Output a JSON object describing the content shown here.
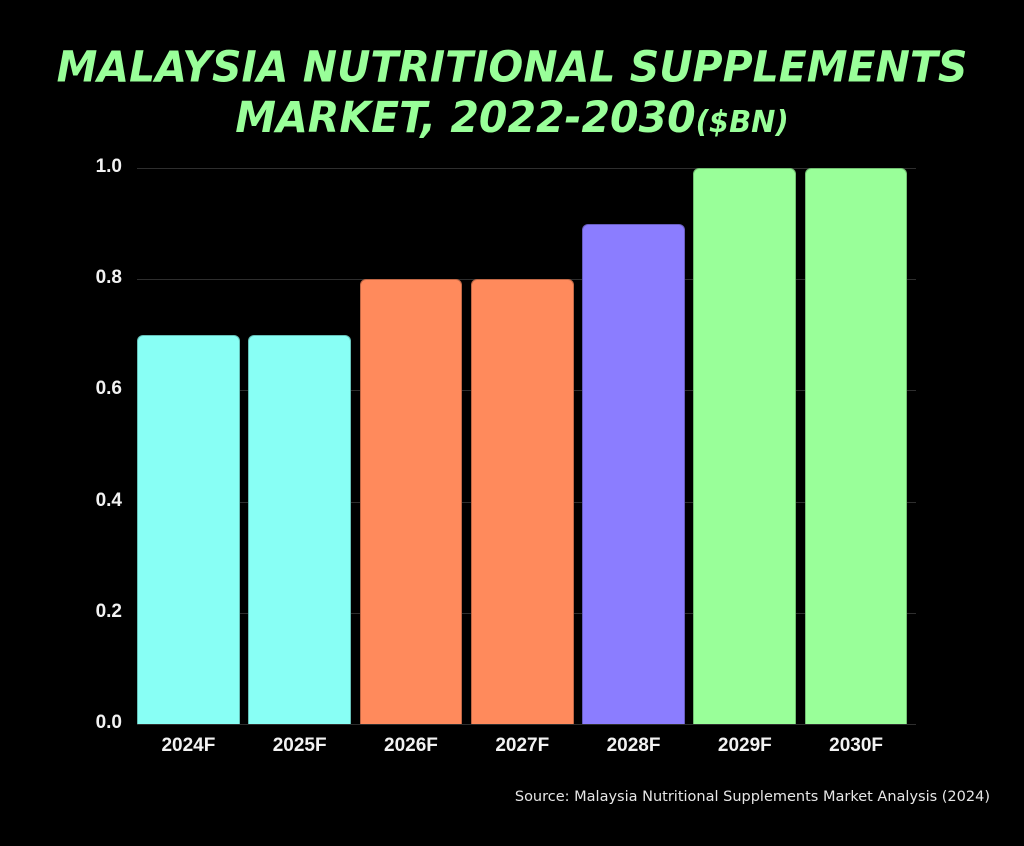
{
  "chart_data": {
    "type": "bar",
    "title": "MALAYSIA NUTRITIONAL SUPPLEMENTS MARKET, 2022-2030($BN)",
    "title_lines": [
      "MALAYSIA NUTRITIONAL SUPPLEMENTS",
      "MARKET, 2022-2030",
      "($BN)"
    ],
    "xlabel": "",
    "ylabel": "",
    "categories": [
      "2024F",
      "2025F",
      "2026F",
      "2027F",
      "2028F",
      "2029F",
      "2030F"
    ],
    "values": [
      0.7,
      0.7,
      0.8,
      0.8,
      0.9,
      1.0,
      1.0
    ],
    "bar_colors": [
      "#88fff5",
      "#88fff5",
      "#ff8a5c",
      "#ff8a5c",
      "#8b7dff",
      "#99ff99",
      "#99ff99"
    ],
    "ylim": [
      0.0,
      1.0
    ],
    "yticks": [
      "0.0",
      "0.2",
      "0.4",
      "0.6",
      "0.8",
      "1.0"
    ],
    "grid": true,
    "legend": null,
    "source": "Source: Malaysia Nutritional Supplements Market Analysis (2024)"
  },
  "colors": {
    "background": "#000000",
    "title": "#99ff99",
    "text": "#f2f2f2",
    "grid": "#2e2e2e"
  }
}
